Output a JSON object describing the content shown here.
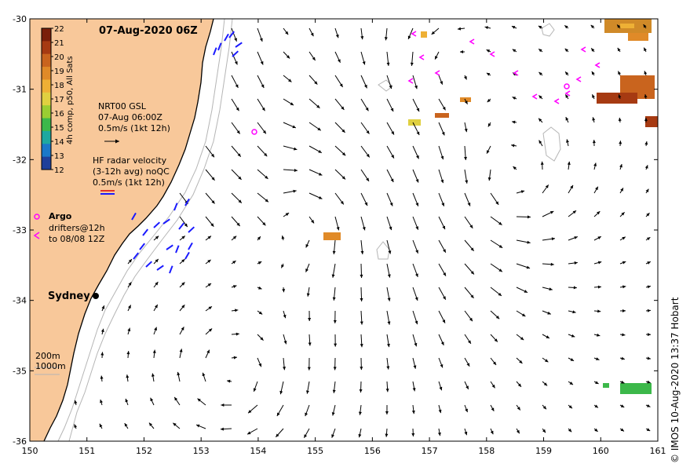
{
  "title": "07-Aug-2020 06Z",
  "credit": "© IMOS 10-Aug-2020 13:37 Hobart",
  "colorbar": {
    "label": "4h comp, p50, All Sats",
    "ticks": [
      "22",
      "21",
      "20",
      "19",
      "18",
      "17",
      "16",
      "15",
      "14",
      "13",
      "12"
    ],
    "colors": [
      "#7a1f0a",
      "#a63a12",
      "#c9641e",
      "#e08a28",
      "#eeb035",
      "#e0d040",
      "#9acd32",
      "#3cb84a",
      "#1ea8a0",
      "#1b78c8",
      "#1f3f9a"
    ]
  },
  "legend": {
    "nrt_title": "NRT00 GSL",
    "nrt_time": "07-Aug 06:00Z",
    "nrt_scale": "0.5m/s (1kt 12h)",
    "hf_title": "HF radar velocity",
    "hf_sub": "(3-12h avg) noQC",
    "hf_scale": "0.5m/s (1kt 12h)",
    "argo": "Argo",
    "drifters": "drifters@12h",
    "drifters_sub": "to 08/08 12Z"
  },
  "place": {
    "name": "Sydney"
  },
  "depth": {
    "c1": "200m",
    "c2": "1000m"
  },
  "axes": {
    "x_ticks": [
      "150",
      "151",
      "152",
      "153",
      "154",
      "155",
      "156",
      "157",
      "158",
      "159",
      "160",
      "161"
    ],
    "y_ticks": [
      "-30",
      "-31",
      "-32",
      "-33",
      "-34",
      "-35",
      "-36"
    ]
  }
}
